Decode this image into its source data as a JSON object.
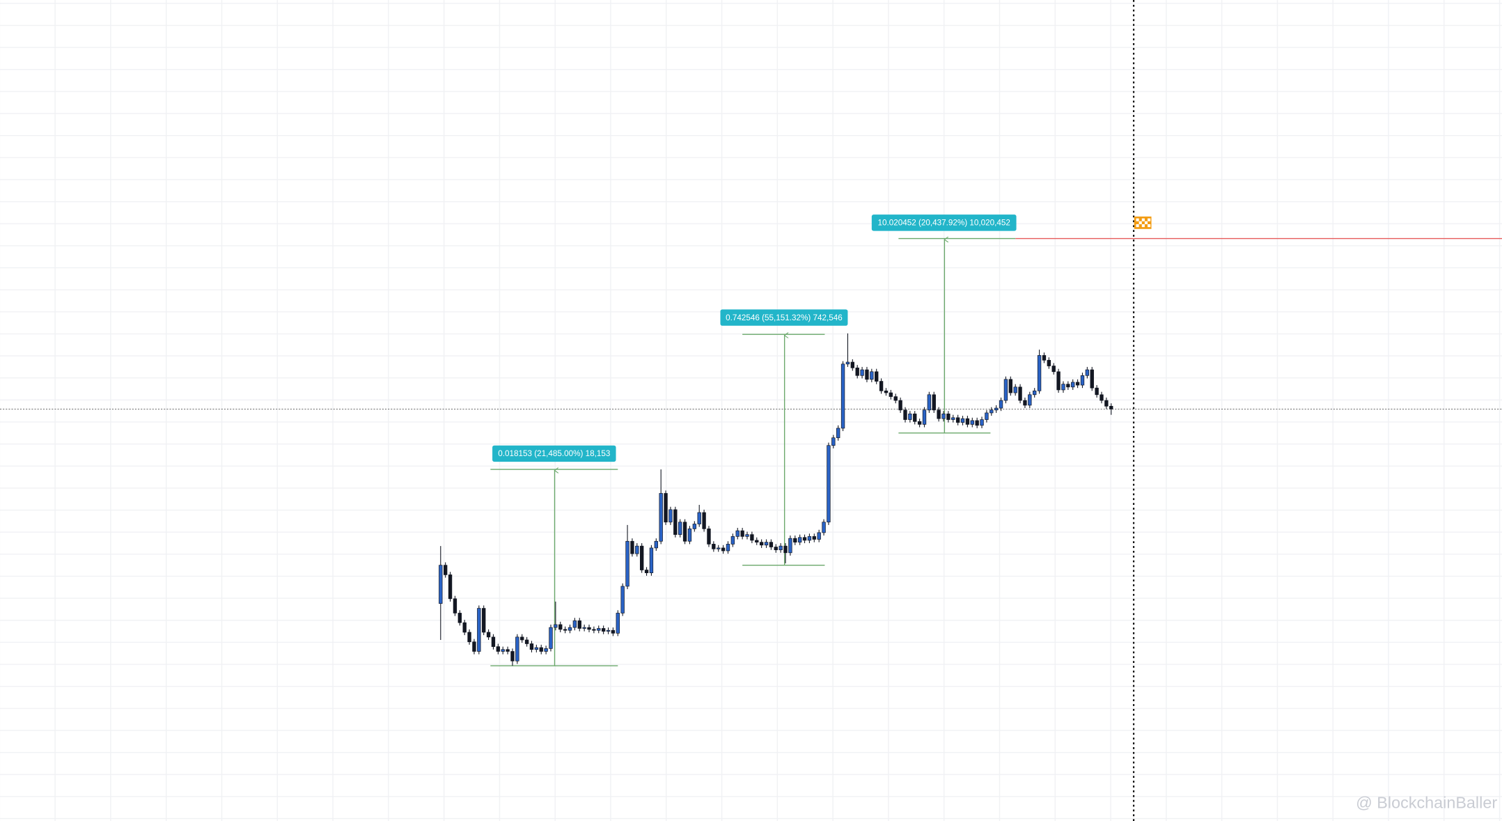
{
  "chart_data": {
    "type": "candlestick",
    "up_color": "#2a63c6",
    "down_color": "#131722",
    "ylim": [
      0,
      857
    ],
    "open": [
      227,
      267,
      257,
      232,
      217,
      207,
      197,
      187,
      177,
      222,
      197,
      192,
      182,
      177,
      179,
      177,
      167,
      192,
      189,
      185,
      179,
      181,
      177,
      180,
      202,
      205,
      200,
      199,
      202,
      209,
      201,
      202,
      200,
      199,
      201,
      198,
      199,
      196,
      217,
      245,
      292,
      279,
      287,
      262,
      259,
      285,
      292,
      342,
      312,
      325,
      299,
      312,
      292,
      305,
      310,
      322,
      305,
      289,
      284,
      285,
      282,
      289,
      297,
      303,
      297,
      299,
      293,
      291,
      288,
      291,
      286,
      283,
      287,
      280,
      295,
      291,
      296,
      293,
      297,
      294,
      301,
      312,
      392,
      400,
      410,
      477,
      479,
      473,
      465,
      471,
      461,
      469,
      459,
      449,
      447,
      443,
      439,
      429,
      419,
      425,
      417,
      414,
      429,
      445,
      429,
      420,
      425,
      419,
      421,
      416,
      420,
      414,
      418,
      413,
      419,
      426,
      429,
      431,
      439,
      461,
      447,
      453,
      439,
      434,
      445,
      449,
      486,
      481,
      475,
      469,
      450,
      456,
      453,
      458,
      455,
      465,
      471,
      452,
      445,
      439,
      433
    ],
    "high": [
      287,
      270,
      260,
      235,
      220,
      210,
      200,
      190,
      225,
      225,
      200,
      195,
      185,
      182,
      182,
      180,
      195,
      195,
      192,
      188,
      184,
      184,
      183,
      205,
      229,
      208,
      203,
      205,
      212,
      212,
      205,
      205,
      203,
      204,
      204,
      202,
      202,
      220,
      248,
      309,
      295,
      290,
      290,
      265,
      288,
      295,
      367,
      345,
      328,
      328,
      315,
      315,
      308,
      313,
      330,
      325,
      308,
      292,
      288,
      288,
      292,
      300,
      306,
      306,
      302,
      302,
      296,
      294,
      294,
      294,
      289,
      290,
      290,
      298,
      298,
      299,
      299,
      300,
      300,
      304,
      315,
      395,
      403,
      413,
      480,
      509,
      482,
      476,
      474,
      474,
      472,
      472,
      462,
      452,
      450,
      446,
      442,
      432,
      428,
      428,
      420,
      432,
      448,
      448,
      432,
      428,
      428,
      424,
      424,
      423,
      423,
      421,
      421,
      422,
      429,
      432,
      434,
      442,
      464,
      464,
      456,
      456,
      442,
      448,
      452,
      492,
      489,
      484,
      478,
      472,
      459,
      459,
      461,
      461,
      468,
      474,
      474,
      455,
      448,
      442,
      436
    ],
    "low": [
      189,
      254,
      229,
      214,
      204,
      194,
      184,
      174,
      174,
      194,
      189,
      179,
      174,
      174,
      174,
      162,
      164,
      186,
      182,
      176,
      176,
      174,
      174,
      177,
      199,
      197,
      196,
      196,
      199,
      198,
      198,
      197,
      196,
      196,
      195,
      195,
      193,
      193,
      214,
      242,
      276,
      276,
      259,
      256,
      256,
      282,
      289,
      309,
      309,
      296,
      296,
      289,
      289,
      302,
      307,
      302,
      286,
      281,
      281,
      279,
      279,
      286,
      294,
      294,
      294,
      290,
      288,
      285,
      285,
      283,
      280,
      280,
      269,
      277,
      288,
      288,
      290,
      290,
      291,
      291,
      298,
      309,
      389,
      397,
      407,
      474,
      470,
      462,
      462,
      458,
      458,
      456,
      446,
      444,
      440,
      436,
      426,
      416,
      416,
      414,
      411,
      411,
      426,
      426,
      417,
      417,
      416,
      416,
      413,
      413,
      411,
      411,
      410,
      410,
      416,
      423,
      426,
      428,
      436,
      444,
      444,
      436,
      431,
      431,
      442,
      446,
      478,
      472,
      466,
      447,
      447,
      450,
      450,
      452,
      452,
      462,
      449,
      442,
      436,
      430,
      424
    ],
    "close": [
      267,
      257,
      232,
      217,
      207,
      197,
      187,
      177,
      222,
      197,
      192,
      182,
      177,
      179,
      177,
      167,
      192,
      189,
      185,
      179,
      181,
      177,
      180,
      202,
      205,
      200,
      199,
      202,
      209,
      201,
      202,
      200,
      199,
      201,
      198,
      199,
      196,
      217,
      245,
      292,
      279,
      287,
      262,
      259,
      285,
      292,
      342,
      312,
      325,
      299,
      312,
      292,
      305,
      310,
      322,
      305,
      289,
      284,
      285,
      282,
      289,
      297,
      303,
      297,
      299,
      293,
      291,
      288,
      291,
      286,
      283,
      287,
      280,
      295,
      291,
      296,
      293,
      297,
      294,
      301,
      312,
      392,
      400,
      410,
      477,
      479,
      473,
      465,
      471,
      461,
      469,
      459,
      449,
      447,
      443,
      439,
      429,
      419,
      425,
      417,
      414,
      429,
      445,
      429,
      420,
      425,
      419,
      421,
      416,
      420,
      414,
      418,
      413,
      419,
      426,
      429,
      431,
      439,
      461,
      447,
      453,
      439,
      434,
      445,
      449,
      486,
      481,
      475,
      469,
      450,
      456,
      453,
      458,
      455,
      465,
      471,
      452,
      445,
      439,
      433,
      430
    ],
    "annotations": [
      "0.018153 (21,485.00%) 18,153",
      "0.742546 (55,151.32%) 742,546",
      "10.020452 (20,437.92%) 10,020,452"
    ],
    "watermark": "@ BlockchainBaller"
  }
}
